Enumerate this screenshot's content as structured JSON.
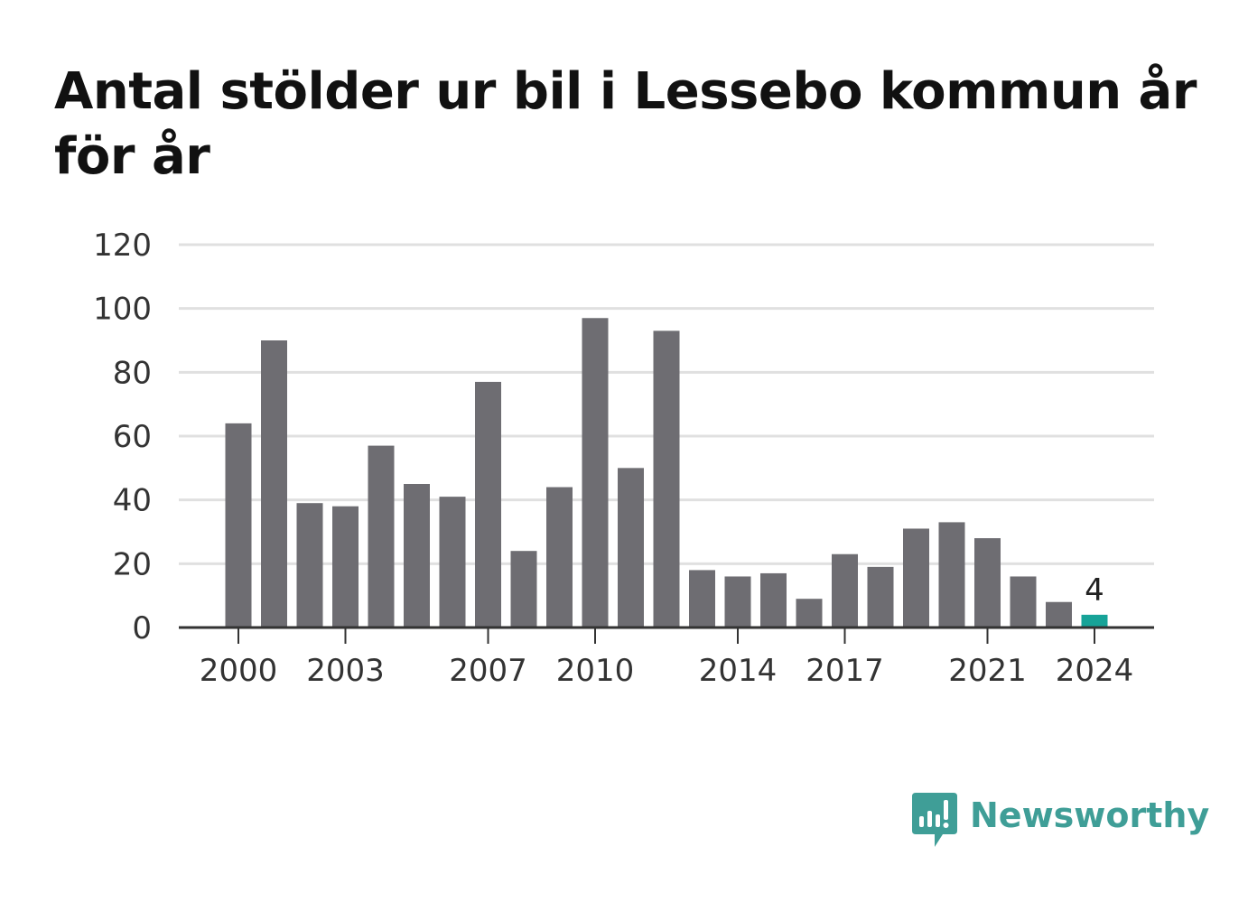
{
  "title": "Antal stölder ur bil i Lessebo kommun år för år",
  "brand": {
    "name": "Newsworthy",
    "color": "#3f9e97"
  },
  "colors": {
    "bar": "#6e6d72",
    "highlight": "#17a398",
    "grid": "#e0e0e0",
    "axis": "#333333"
  },
  "chart_data": {
    "type": "bar",
    "categories": [
      "2000",
      "2001",
      "2002",
      "2003",
      "2004",
      "2005",
      "2006",
      "2007",
      "2008",
      "2009",
      "2010",
      "2011",
      "2012",
      "2013",
      "2014",
      "2015",
      "2016",
      "2017",
      "2018",
      "2019",
      "2020",
      "2021",
      "2022",
      "2023",
      "2024"
    ],
    "values": [
      64,
      90,
      39,
      38,
      57,
      45,
      41,
      77,
      24,
      44,
      97,
      50,
      93,
      18,
      16,
      17,
      9,
      23,
      19,
      31,
      33,
      28,
      16,
      8,
      4
    ],
    "x_tick_labels": [
      "2000",
      "2003",
      "2007",
      "2010",
      "2014",
      "2017",
      "2021",
      "2024"
    ],
    "y_ticks": [
      0,
      20,
      40,
      60,
      80,
      100,
      120
    ],
    "ylim": [
      0,
      120
    ],
    "highlight_category": "2024",
    "data_labels": [
      {
        "category": "2024",
        "text": "4"
      }
    ],
    "grid": true,
    "legend": false,
    "xlabel": "",
    "ylabel": ""
  }
}
